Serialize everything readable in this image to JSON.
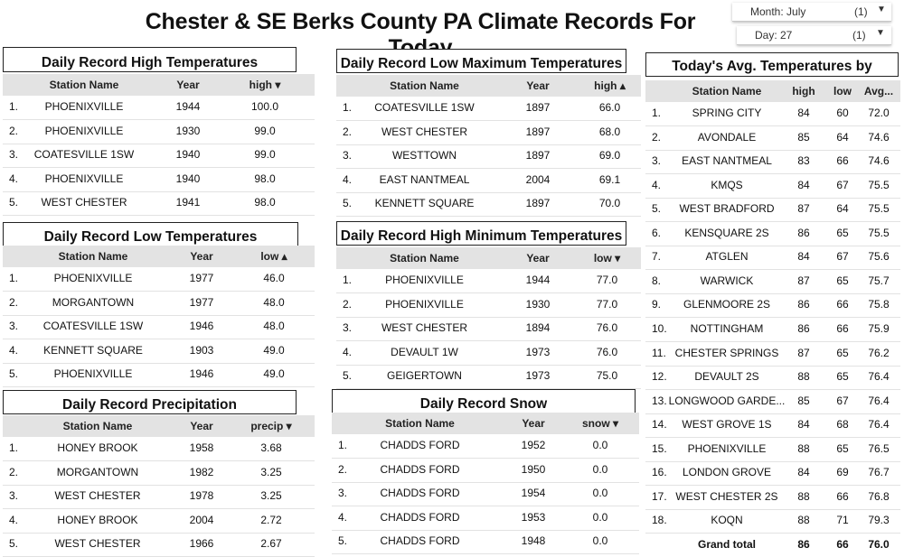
{
  "title": "Chester & SE Berks County PA Climate Records For Today",
  "controls": {
    "month": {
      "label": "Month: July",
      "count": "(1)",
      "icon": "dropdown-arrow-icon"
    },
    "day": {
      "label": "Day: 27",
      "count": "(1)",
      "icon": "dropdown-arrow-icon"
    }
  },
  "record_high": {
    "title": "Daily Record High Temperatures",
    "columns": [
      "Station Name",
      "Year",
      "high ▾"
    ],
    "rows": [
      [
        "1.",
        "PHOENIXVILLE",
        "1944",
        "100.0"
      ],
      [
        "2.",
        "PHOENIXVILLE",
        "1930",
        "99.0"
      ],
      [
        "3.",
        "COATESVILLE 1SW",
        "1940",
        "99.0"
      ],
      [
        "4.",
        "PHOENIXVILLE",
        "1940",
        "98.0"
      ],
      [
        "5.",
        "WEST CHESTER",
        "1941",
        "98.0"
      ]
    ]
  },
  "record_low": {
    "title": "Daily Record Low Temperatures",
    "columns": [
      "Station Name",
      "Year",
      "low ▴"
    ],
    "rows": [
      [
        "1.",
        "PHOENIXVILLE",
        "1977",
        "46.0"
      ],
      [
        "2.",
        "MORGANTOWN",
        "1977",
        "48.0"
      ],
      [
        "3.",
        "COATESVILLE 1SW",
        "1946",
        "48.0"
      ],
      [
        "4.",
        "KENNETT SQUARE",
        "1903",
        "49.0"
      ],
      [
        "5.",
        "PHOENIXVILLE",
        "1946",
        "49.0"
      ]
    ]
  },
  "record_precip": {
    "title": "Daily Record Precipitation",
    "columns": [
      "Station Name",
      "Year",
      "precip ▾"
    ],
    "rows": [
      [
        "1.",
        "HONEY BROOK",
        "1958",
        "3.68"
      ],
      [
        "2.",
        "MORGANTOWN",
        "1982",
        "3.25"
      ],
      [
        "3.",
        "WEST CHESTER",
        "1978",
        "3.25"
      ],
      [
        "4.",
        "HONEY BROOK",
        "2004",
        "2.72"
      ],
      [
        "5.",
        "WEST CHESTER",
        "1966",
        "2.67"
      ]
    ]
  },
  "record_low_max": {
    "title": "Daily Record Low Maximum Temperatures",
    "columns": [
      "Station Name",
      "Year",
      "high ▴"
    ],
    "rows": [
      [
        "1.",
        "COATESVILLE 1SW",
        "1897",
        "66.0"
      ],
      [
        "2.",
        "WEST CHESTER",
        "1897",
        "68.0"
      ],
      [
        "3.",
        "WESTTOWN",
        "1897",
        "69.0"
      ],
      [
        "4.",
        "EAST NANTMEAL",
        "2004",
        "69.1"
      ],
      [
        "5.",
        "KENNETT SQUARE",
        "1897",
        "70.0"
      ]
    ]
  },
  "record_high_min": {
    "title": "Daily Record High Minimum Temperatures",
    "columns": [
      "Station Name",
      "Year",
      "low ▾"
    ],
    "rows": [
      [
        "1.",
        "PHOENIXVILLE",
        "1944",
        "77.0"
      ],
      [
        "2.",
        "PHOENIXVILLE",
        "1930",
        "77.0"
      ],
      [
        "3.",
        "WEST CHESTER",
        "1894",
        "76.0"
      ],
      [
        "4.",
        "DEVAULT 1W",
        "1973",
        "76.0"
      ],
      [
        "5.",
        "GEIGERTOWN",
        "1973",
        "75.0"
      ]
    ]
  },
  "record_snow": {
    "title": "Daily Record Snow",
    "columns": [
      "Station Name",
      "Year",
      "snow ▾"
    ],
    "rows": [
      [
        "1.",
        "CHADDS FORD",
        "1952",
        "0.0"
      ],
      [
        "2.",
        "CHADDS FORD",
        "1950",
        "0.0"
      ],
      [
        "3.",
        "CHADDS FORD",
        "1954",
        "0.0"
      ],
      [
        "4.",
        "CHADDS FORD",
        "1953",
        "0.0"
      ],
      [
        "5.",
        "CHADDS FORD",
        "1948",
        "0.0"
      ]
    ]
  },
  "avg_temps": {
    "title": "Today's Avg. Temperatures by Station",
    "columns": [
      "Station Name",
      "high",
      "low",
      "Avg..."
    ],
    "rows": [
      [
        "1.",
        "SPRING CITY",
        "84",
        "60",
        "72.0"
      ],
      [
        "2.",
        "AVONDALE",
        "85",
        "64",
        "74.6"
      ],
      [
        "3.",
        "EAST NANTMEAL",
        "83",
        "66",
        "74.6"
      ],
      [
        "4.",
        "KMQS",
        "84",
        "67",
        "75.5"
      ],
      [
        "5.",
        "WEST BRADFORD",
        "87",
        "64",
        "75.5"
      ],
      [
        "6.",
        "KENSQUARE 2S",
        "86",
        "65",
        "75.5"
      ],
      [
        "7.",
        "ATGLEN",
        "84",
        "67",
        "75.6"
      ],
      [
        "8.",
        "WARWICK",
        "87",
        "65",
        "75.7"
      ],
      [
        "9.",
        "GLENMOORE 2S",
        "86",
        "66",
        "75.8"
      ],
      [
        "10.",
        "NOTTINGHAM",
        "86",
        "66",
        "75.9"
      ],
      [
        "11.",
        "CHESTER SPRINGS",
        "87",
        "65",
        "76.2"
      ],
      [
        "12.",
        "DEVAULT 2S",
        "88",
        "65",
        "76.4"
      ],
      [
        "13.",
        "LONGWOOD GARDE...",
        "85",
        "67",
        "76.4"
      ],
      [
        "14.",
        "WEST GROVE 1S",
        "84",
        "68",
        "76.4"
      ],
      [
        "15.",
        "PHOENIXVILLE",
        "88",
        "65",
        "76.5"
      ],
      [
        "16.",
        "LONDON GROVE",
        "84",
        "69",
        "76.7"
      ],
      [
        "17.",
        "WEST CHESTER 2S",
        "88",
        "66",
        "76.8"
      ],
      [
        "18.",
        "KOQN",
        "88",
        "71",
        "79.3"
      ]
    ],
    "total": [
      "",
      "Grand total",
      "86",
      "66",
      "76.0"
    ]
  }
}
